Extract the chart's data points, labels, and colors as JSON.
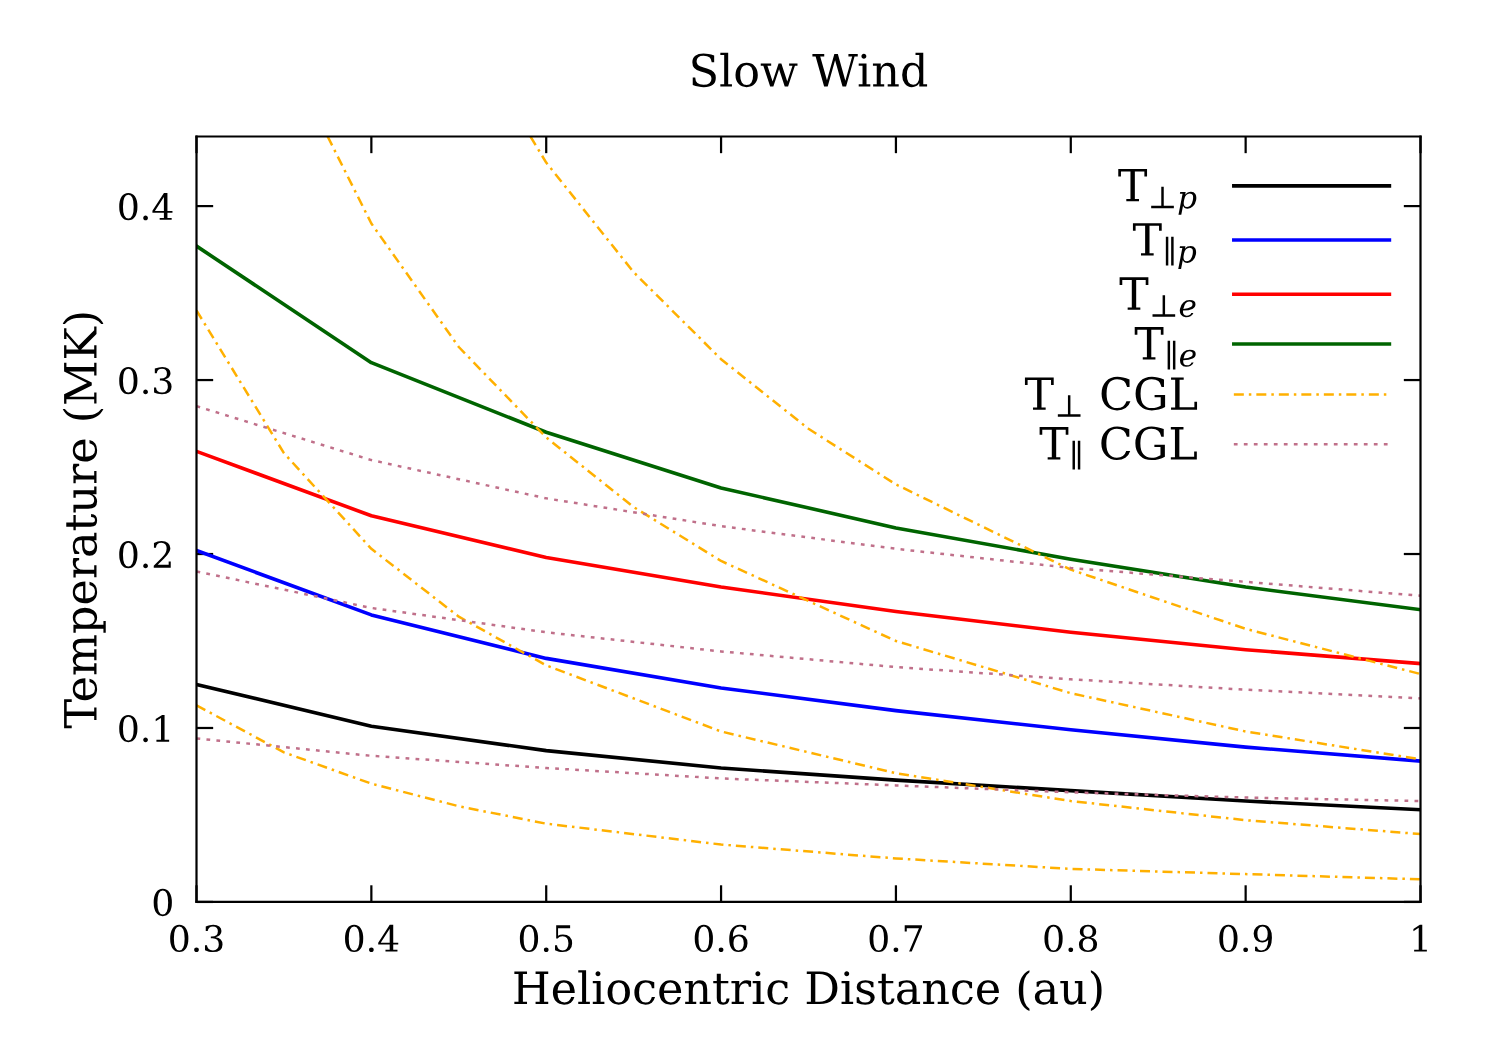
{
  "chart_data": {
    "type": "line",
    "title": "Slow Wind",
    "xlabel": "Heliocentric Distance (au)",
    "ylabel": "Temperature (MK)",
    "xlim": [
      0.3,
      1
    ],
    "ylim": [
      0,
      0.44
    ],
    "xticks": [
      0.3,
      0.4,
      0.5,
      0.6,
      0.7,
      0.8,
      0.9,
      1
    ],
    "yticks": [
      0,
      0.1,
      0.2,
      0.3,
      0.4
    ],
    "grid": false,
    "legend": "top right",
    "marker": "none",
    "series": [
      {
        "name": "T$_{⊥p}$",
        "color": "#000000",
        "line_style": "solid",
        "x": [
          0.3,
          0.4,
          0.5,
          0.6,
          0.7,
          0.8,
          0.9,
          1.0
        ],
        "values": [
          0.125,
          0.101,
          0.087,
          0.077,
          0.07,
          0.064,
          0.058,
          0.053
        ]
      },
      {
        "name": "T$_{∥p}$",
        "color": "#0000ff",
        "line_style": "solid",
        "x": [
          0.3,
          0.4,
          0.5,
          0.6,
          0.7,
          0.8,
          0.9,
          1.0
        ],
        "values": [
          0.202,
          0.165,
          0.14,
          0.123,
          0.11,
          0.099,
          0.089,
          0.081
        ]
      },
      {
        "name": "T$_{⊥e}$",
        "color": "#ff0000",
        "line_style": "solid",
        "x": [
          0.3,
          0.4,
          0.5,
          0.6,
          0.7,
          0.8,
          0.9,
          1.0
        ],
        "values": [
          0.259,
          0.222,
          0.198,
          0.181,
          0.167,
          0.155,
          0.145,
          0.137
        ]
      },
      {
        "name": "T$_{∥e}$",
        "color": "#006400",
        "line_style": "solid",
        "x": [
          0.3,
          0.4,
          0.5,
          0.6,
          0.7,
          0.8,
          0.9,
          1.0
        ],
        "values": [
          0.377,
          0.31,
          0.27,
          0.238,
          0.215,
          0.197,
          0.181,
          0.168
        ]
      },
      {
        "name": "T$_{⊥}$ CGL",
        "color": "#ffb000",
        "line_style": "dashed",
        "x": [
          0.3,
          0.35,
          0.4,
          0.45,
          0.5,
          0.6,
          0.7,
          0.8,
          0.9,
          1.0
        ],
        "values": [
          0.113,
          0.086,
          0.068,
          0.055,
          0.045,
          0.033,
          0.025,
          0.019,
          0.016,
          0.013
        ]
      },
      {
        "color": "#ffb000",
        "line_style": "dashed",
        "x": [
          0.3,
          0.35,
          0.4,
          0.45,
          0.5,
          0.6,
          0.7,
          0.8,
          0.9,
          1.0
        ],
        "values": [
          0.34,
          0.258,
          0.203,
          0.164,
          0.136,
          0.098,
          0.074,
          0.058,
          0.047,
          0.039
        ]
      },
      {
        "color": "#ffb000",
        "line_style": "dashed",
        "x": [
          0.375,
          0.4,
          0.45,
          0.5,
          0.55,
          0.6,
          0.7,
          0.8,
          0.9,
          1.0
        ],
        "values": [
          0.44,
          0.39,
          0.319,
          0.267,
          0.227,
          0.196,
          0.15,
          0.12,
          0.098,
          0.082
        ]
      },
      {
        "color": "#ffb000",
        "line_style": "dashed",
        "x": [
          0.491,
          0.5,
          0.55,
          0.6,
          0.65,
          0.7,
          0.8,
          0.9,
          1.0
        ],
        "values": [
          0.44,
          0.425,
          0.362,
          0.312,
          0.272,
          0.24,
          0.191,
          0.157,
          0.131
        ]
      },
      {
        "name": "T$_{∥}$ CGL",
        "color": "#c0708a",
        "line_style": "dotted",
        "x": [
          0.3,
          0.4,
          0.5,
          0.6,
          0.7,
          0.8,
          0.9,
          1.0
        ],
        "values": [
          0.285,
          0.254,
          0.232,
          0.216,
          0.203,
          0.192,
          0.184,
          0.176
        ]
      },
      {
        "color": "#c0708a",
        "line_style": "dotted",
        "x": [
          0.3,
          0.4,
          0.5,
          0.6,
          0.7,
          0.8,
          0.9,
          1.0
        ],
        "values": [
          0.19,
          0.169,
          0.155,
          0.144,
          0.135,
          0.128,
          0.122,
          0.117
        ]
      },
      {
        "color": "#c0708a",
        "line_style": "dotted",
        "x": [
          0.3,
          0.4,
          0.5,
          0.6,
          0.7,
          0.8,
          0.9,
          1.0
        ],
        "values": [
          0.094,
          0.084,
          0.077,
          0.071,
          0.067,
          0.063,
          0.06,
          0.058
        ]
      }
    ]
  }
}
